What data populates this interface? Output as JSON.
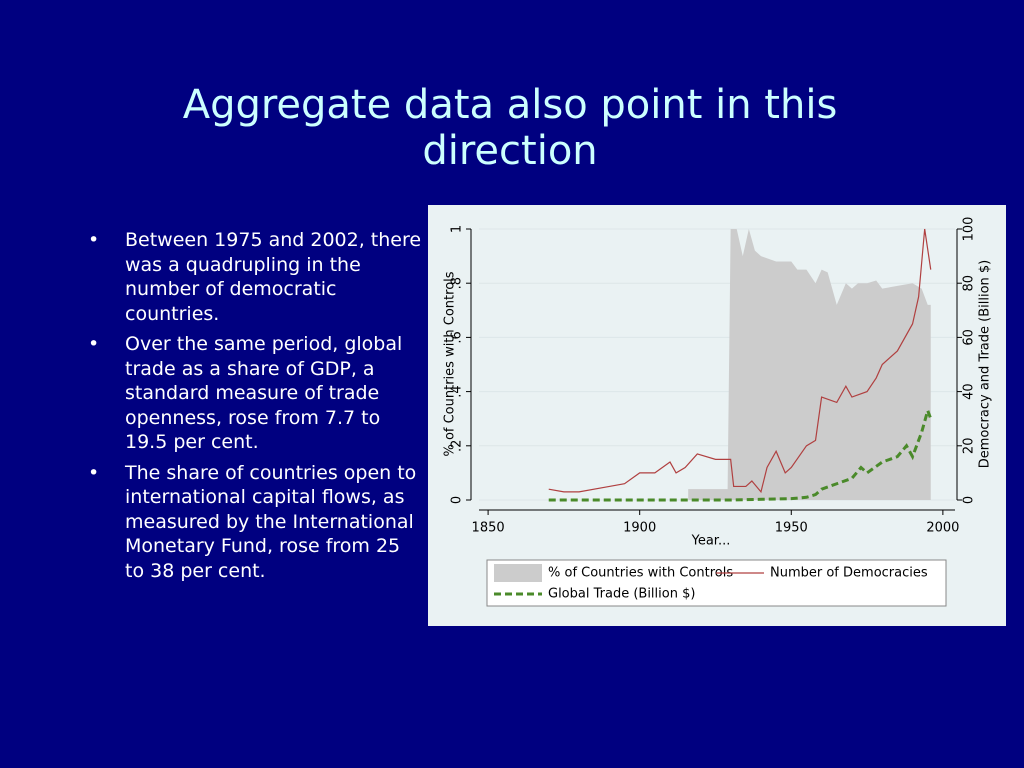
{
  "header": {
    "title": "Aggregate data also point in this direction"
  },
  "bullets": [
    "Between 1975 and 2002, there was a quadrupling in the number of democratic countries.",
    "Over the same period, global trade as a share of GDP, a standard measure of trade openness, rose from 7.7 to 19.5 per cent.",
    "The share of countries open to international capital flows, as measured by the International Monetary Fund, rose from 25 to 38 per cent."
  ],
  "chart_data": {
    "type": "combo",
    "x_label": "Year...",
    "y_label": "% of Countries with Controls",
    "y2_label": "Democracy and Trade (Billion $)",
    "xlim": [
      1847,
      2004
    ],
    "xticks": [
      1850,
      1900,
      1950,
      2000
    ],
    "ylim": [
      0,
      1
    ],
    "yticks": [
      0,
      {
        "value": 0.2,
        "label": ".2"
      },
      {
        "value": 0.4,
        "label": ".4"
      },
      {
        "value": 0.6,
        "label": ".6"
      },
      {
        "value": 0.8,
        "label": ".8"
      },
      1
    ],
    "y2lim": [
      0,
      100
    ],
    "y2ticks": [
      0,
      20,
      40,
      60,
      80,
      100
    ],
    "series": [
      {
        "name": "% of Countries with Controls",
        "mark": "area",
        "color": "#cccccc",
        "x": [
          1916,
          1929,
          1930,
          1932,
          1934,
          1936,
          1938,
          1940,
          1945,
          1950,
          1952,
          1955,
          1958,
          1960,
          1962,
          1965,
          1968,
          1970,
          1972,
          1975,
          1978,
          1980,
          1985,
          1990,
          1993,
          1995,
          1996
        ],
        "values": [
          0.04,
          0.04,
          1,
          1,
          0.9,
          1,
          0.92,
          0.9,
          0.88,
          0.88,
          0.85,
          0.85,
          0.8,
          0.85,
          0.84,
          0.72,
          0.8,
          0.78,
          0.8,
          0.8,
          0.81,
          0.78,
          0.79,
          0.8,
          0.78,
          0.72,
          0.72
        ]
      },
      {
        "name": "Number of Democracies",
        "mark": "line",
        "axis": "y2",
        "color": "#b04040",
        "x": [
          1870,
          1875,
          1880,
          1890,
          1895,
          1900,
          1905,
          1910,
          1912,
          1915,
          1919,
          1925,
          1930,
          1931,
          1935,
          1937,
          1940,
          1942,
          1945,
          1948,
          1950,
          1955,
          1958,
          1960,
          1965,
          1968,
          1970,
          1975,
          1978,
          1980,
          1985,
          1990,
          1992,
          1994,
          1996
        ],
        "values": [
          4,
          3,
          3,
          5,
          6,
          10,
          10,
          14,
          10,
          12,
          17,
          15,
          15,
          5,
          5,
          7,
          3,
          12,
          18,
          10,
          12,
          20,
          22,
          38,
          36,
          42,
          38,
          40,
          45,
          50,
          55,
          65,
          75,
          100,
          85
        ]
      },
      {
        "name": "Global Trade (Billion $)",
        "mark": "dash",
        "axis": "y2",
        "color": "#4a8a2a",
        "x": [
          1870,
          1900,
          1930,
          1950,
          1955,
          1958,
          1960,
          1965,
          1970,
          1973,
          1975,
          1980,
          1985,
          1988,
          1990,
          1993,
          1995,
          1996
        ],
        "values": [
          0,
          0,
          0,
          0.5,
          1,
          2,
          4,
          6,
          8,
          12,
          10,
          14,
          16,
          20,
          16,
          25,
          33,
          30
        ]
      }
    ]
  }
}
